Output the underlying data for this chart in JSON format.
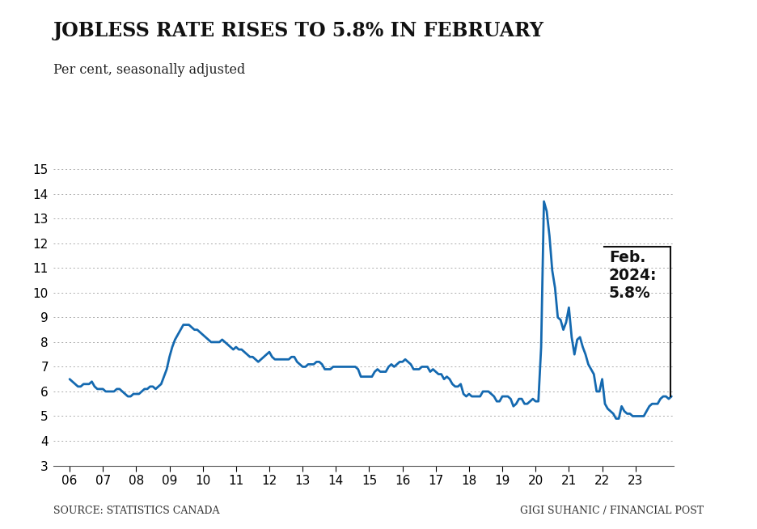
{
  "title": "JOBLESS RATE RISES TO 5.8% IN FEBRUARY",
  "subtitle": "Per cent, seasonally adjusted",
  "source_left": "SOURCE: STATISTICS CANADA",
  "source_right": "GIGI SUHANIC / FINANCIAL POST",
  "annotation_text": "Feb.\n2024:\n5.8%",
  "line_color": "#1469b0",
  "background_color": "#ffffff",
  "ylim": [
    3,
    15
  ],
  "yticks": [
    3,
    4,
    5,
    6,
    7,
    8,
    9,
    10,
    11,
    12,
    13,
    14,
    15
  ],
  "data": {
    "2006-01": 6.5,
    "2006-02": 6.4,
    "2006-03": 6.3,
    "2006-04": 6.2,
    "2006-05": 6.2,
    "2006-06": 6.3,
    "2006-07": 6.3,
    "2006-08": 6.3,
    "2006-09": 6.4,
    "2006-10": 6.2,
    "2006-11": 6.1,
    "2006-12": 6.1,
    "2007-01": 6.1,
    "2007-02": 6.0,
    "2007-03": 6.0,
    "2007-04": 6.0,
    "2007-05": 6.0,
    "2007-06": 6.1,
    "2007-07": 6.1,
    "2007-08": 6.0,
    "2007-09": 5.9,
    "2007-10": 5.8,
    "2007-11": 5.8,
    "2007-12": 5.9,
    "2008-01": 5.9,
    "2008-02": 5.9,
    "2008-03": 6.0,
    "2008-04": 6.1,
    "2008-05": 6.1,
    "2008-06": 6.2,
    "2008-07": 6.2,
    "2008-08": 6.1,
    "2008-09": 6.2,
    "2008-10": 6.3,
    "2008-11": 6.6,
    "2008-12": 6.9,
    "2009-01": 7.4,
    "2009-02": 7.8,
    "2009-03": 8.1,
    "2009-04": 8.3,
    "2009-05": 8.5,
    "2009-06": 8.7,
    "2009-07": 8.7,
    "2009-08": 8.7,
    "2009-09": 8.6,
    "2009-10": 8.5,
    "2009-11": 8.5,
    "2009-12": 8.4,
    "2010-01": 8.3,
    "2010-02": 8.2,
    "2010-03": 8.1,
    "2010-04": 8.0,
    "2010-05": 8.0,
    "2010-06": 8.0,
    "2010-07": 8.0,
    "2010-08": 8.1,
    "2010-09": 8.0,
    "2010-10": 7.9,
    "2010-11": 7.8,
    "2010-12": 7.7,
    "2011-01": 7.8,
    "2011-02": 7.7,
    "2011-03": 7.7,
    "2011-04": 7.6,
    "2011-05": 7.5,
    "2011-06": 7.4,
    "2011-07": 7.4,
    "2011-08": 7.3,
    "2011-09": 7.2,
    "2011-10": 7.3,
    "2011-11": 7.4,
    "2011-12": 7.5,
    "2012-01": 7.6,
    "2012-02": 7.4,
    "2012-03": 7.3,
    "2012-04": 7.3,
    "2012-05": 7.3,
    "2012-06": 7.3,
    "2012-07": 7.3,
    "2012-08": 7.3,
    "2012-09": 7.4,
    "2012-10": 7.4,
    "2012-11": 7.2,
    "2012-12": 7.1,
    "2013-01": 7.0,
    "2013-02": 7.0,
    "2013-03": 7.1,
    "2013-04": 7.1,
    "2013-05": 7.1,
    "2013-06": 7.2,
    "2013-07": 7.2,
    "2013-08": 7.1,
    "2013-09": 6.9,
    "2013-10": 6.9,
    "2013-11": 6.9,
    "2013-12": 7.0,
    "2014-01": 7.0,
    "2014-02": 7.0,
    "2014-03": 7.0,
    "2014-04": 7.0,
    "2014-05": 7.0,
    "2014-06": 7.0,
    "2014-07": 7.0,
    "2014-08": 7.0,
    "2014-09": 6.9,
    "2014-10": 6.6,
    "2014-11": 6.6,
    "2014-12": 6.6,
    "2015-01": 6.6,
    "2015-02": 6.6,
    "2015-03": 6.8,
    "2015-04": 6.9,
    "2015-05": 6.8,
    "2015-06": 6.8,
    "2015-07": 6.8,
    "2015-08": 7.0,
    "2015-09": 7.1,
    "2015-10": 7.0,
    "2015-11": 7.1,
    "2015-12": 7.2,
    "2016-01": 7.2,
    "2016-02": 7.3,
    "2016-03": 7.2,
    "2016-04": 7.1,
    "2016-05": 6.9,
    "2016-06": 6.9,
    "2016-07": 6.9,
    "2016-08": 7.0,
    "2016-09": 7.0,
    "2016-10": 7.0,
    "2016-11": 6.8,
    "2016-12": 6.9,
    "2017-01": 6.8,
    "2017-02": 6.7,
    "2017-03": 6.7,
    "2017-04": 6.5,
    "2017-05": 6.6,
    "2017-06": 6.5,
    "2017-07": 6.3,
    "2017-08": 6.2,
    "2017-09": 6.2,
    "2017-10": 6.3,
    "2017-11": 5.9,
    "2017-12": 5.8,
    "2018-01": 5.9,
    "2018-02": 5.8,
    "2018-03": 5.8,
    "2018-04": 5.8,
    "2018-05": 5.8,
    "2018-06": 6.0,
    "2018-07": 6.0,
    "2018-08": 6.0,
    "2018-09": 5.9,
    "2018-10": 5.8,
    "2018-11": 5.6,
    "2018-12": 5.6,
    "2019-01": 5.8,
    "2019-02": 5.8,
    "2019-03": 5.8,
    "2019-04": 5.7,
    "2019-05": 5.4,
    "2019-06": 5.5,
    "2019-07": 5.7,
    "2019-08": 5.7,
    "2019-09": 5.5,
    "2019-10": 5.5,
    "2019-11": 5.6,
    "2019-12": 5.7,
    "2020-01": 5.6,
    "2020-02": 5.6,
    "2020-03": 7.8,
    "2020-04": 13.7,
    "2020-05": 13.3,
    "2020-06": 12.3,
    "2020-07": 10.9,
    "2020-08": 10.2,
    "2020-09": 9.0,
    "2020-10": 8.9,
    "2020-11": 8.5,
    "2020-12": 8.8,
    "2021-01": 9.4,
    "2021-02": 8.2,
    "2021-03": 7.5,
    "2021-04": 8.1,
    "2021-05": 8.2,
    "2021-06": 7.8,
    "2021-07": 7.5,
    "2021-08": 7.1,
    "2021-09": 6.9,
    "2021-10": 6.7,
    "2021-11": 6.0,
    "2021-12": 6.0,
    "2022-01": 6.5,
    "2022-02": 5.5,
    "2022-03": 5.3,
    "2022-04": 5.2,
    "2022-05": 5.1,
    "2022-06": 4.9,
    "2022-07": 4.9,
    "2022-08": 5.4,
    "2022-09": 5.2,
    "2022-10": 5.1,
    "2022-11": 5.1,
    "2022-12": 5.0,
    "2023-01": 5.0,
    "2023-02": 5.0,
    "2023-03": 5.0,
    "2023-04": 5.0,
    "2023-05": 5.2,
    "2023-06": 5.4,
    "2023-07": 5.5,
    "2023-08": 5.5,
    "2023-09": 5.5,
    "2023-10": 5.7,
    "2023-11": 5.8,
    "2023-12": 5.8,
    "2024-01": 5.7,
    "2024-02": 5.8
  }
}
